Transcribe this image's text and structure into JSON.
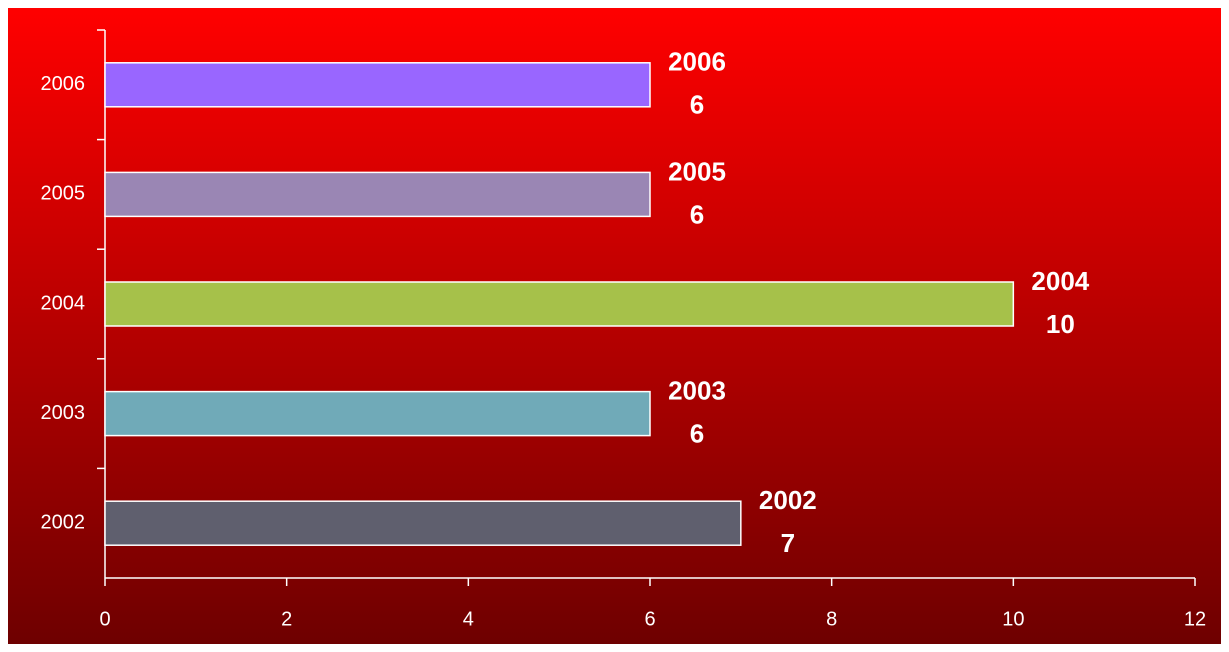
{
  "chart_data": {
    "type": "bar",
    "orientation": "horizontal",
    "categories": [
      "2002",
      "2003",
      "2004",
      "2005",
      "2006"
    ],
    "values": [
      7,
      6,
      10,
      6,
      6
    ],
    "colors": [
      "#5f5f6e",
      "#70aab8",
      "#a6c14a",
      "#9a86b4",
      "#9966ff"
    ],
    "xlim": [
      0,
      12
    ],
    "xticks": [
      0,
      2,
      4,
      6,
      8,
      10,
      12
    ],
    "grid": false
  }
}
